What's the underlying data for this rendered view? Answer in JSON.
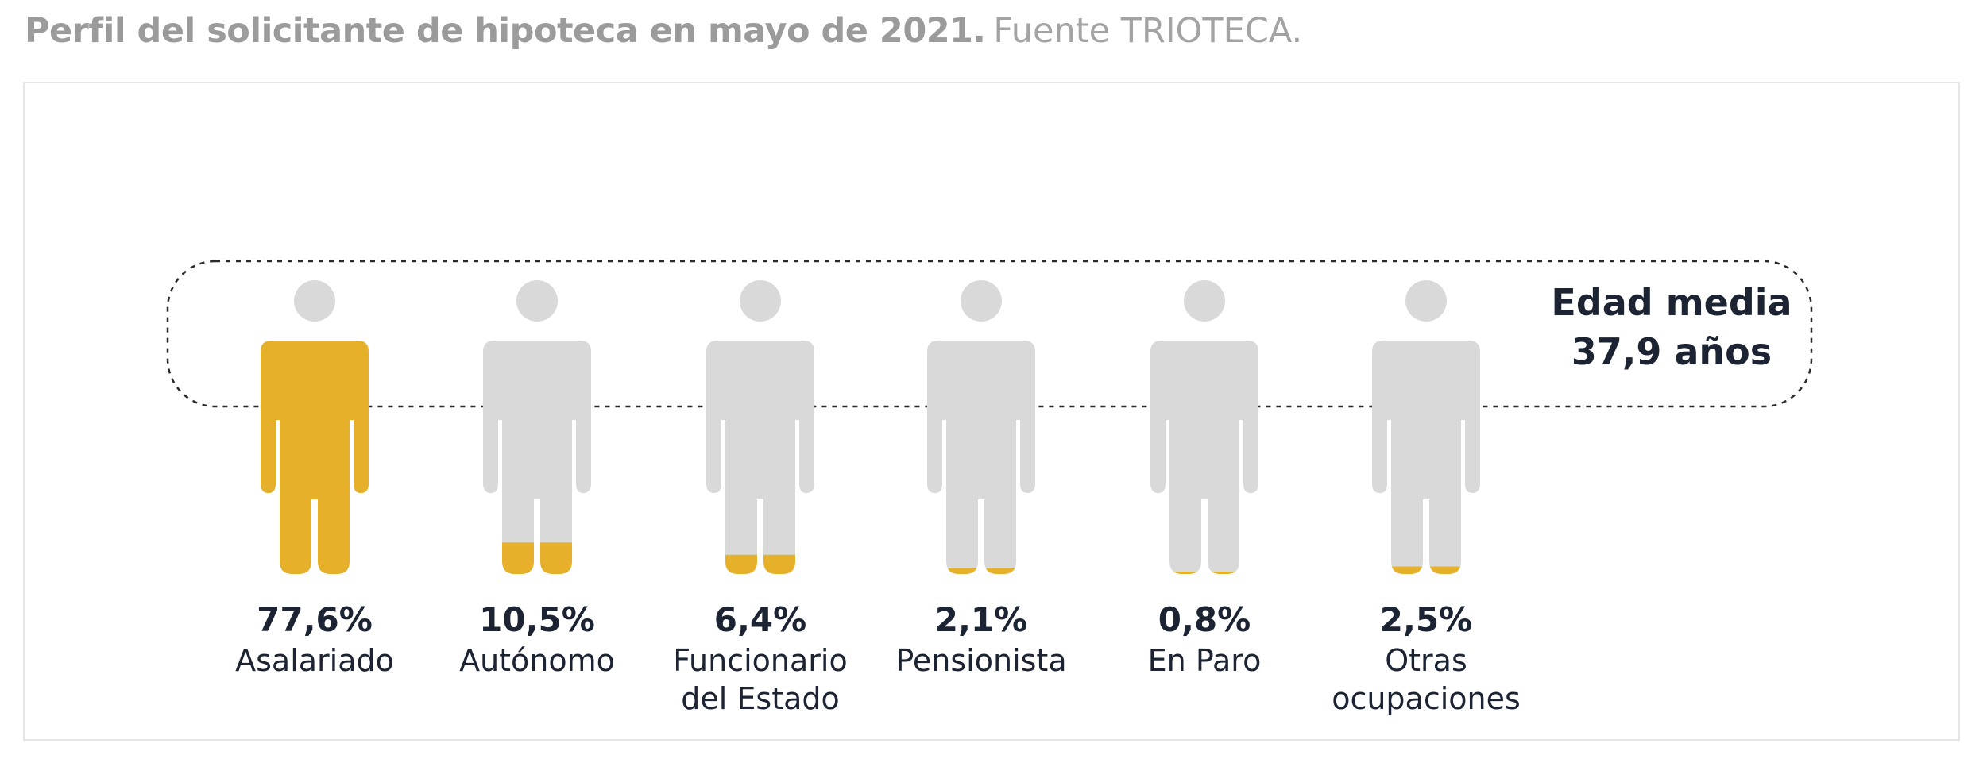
{
  "header": {
    "title_bold": "Perfil del solicitante de hipoteca en mayo de 2021.",
    "title_source": "Fuente TRIOTECA."
  },
  "colors": {
    "fill": "#e6b02a",
    "base": "#d9d9d9",
    "text": "#1c2433",
    "dash": "#2a2a2a"
  },
  "chart_data": {
    "type": "pictogram",
    "categories": [
      {
        "value": 77.6,
        "value_label": "77,6%",
        "lines": [
          "Asalariado"
        ]
      },
      {
        "value": 10.5,
        "value_label": "10,5%",
        "lines": [
          "Autónomo"
        ]
      },
      {
        "value": 6.4,
        "value_label": "6,4%",
        "lines": [
          "Funcionario",
          "del Estado"
        ]
      },
      {
        "value": 2.1,
        "value_label": "2,1%",
        "lines": [
          "Pensionista"
        ]
      },
      {
        "value": 0.8,
        "value_label": "0,8%",
        "lines": [
          "En Paro"
        ]
      },
      {
        "value": 2.5,
        "value_label": "2,5%",
        "lines": [
          "Otras",
          "ocupaciones"
        ]
      }
    ],
    "annotation": {
      "lines": [
        "Edad media",
        "37,9 años"
      ]
    }
  }
}
